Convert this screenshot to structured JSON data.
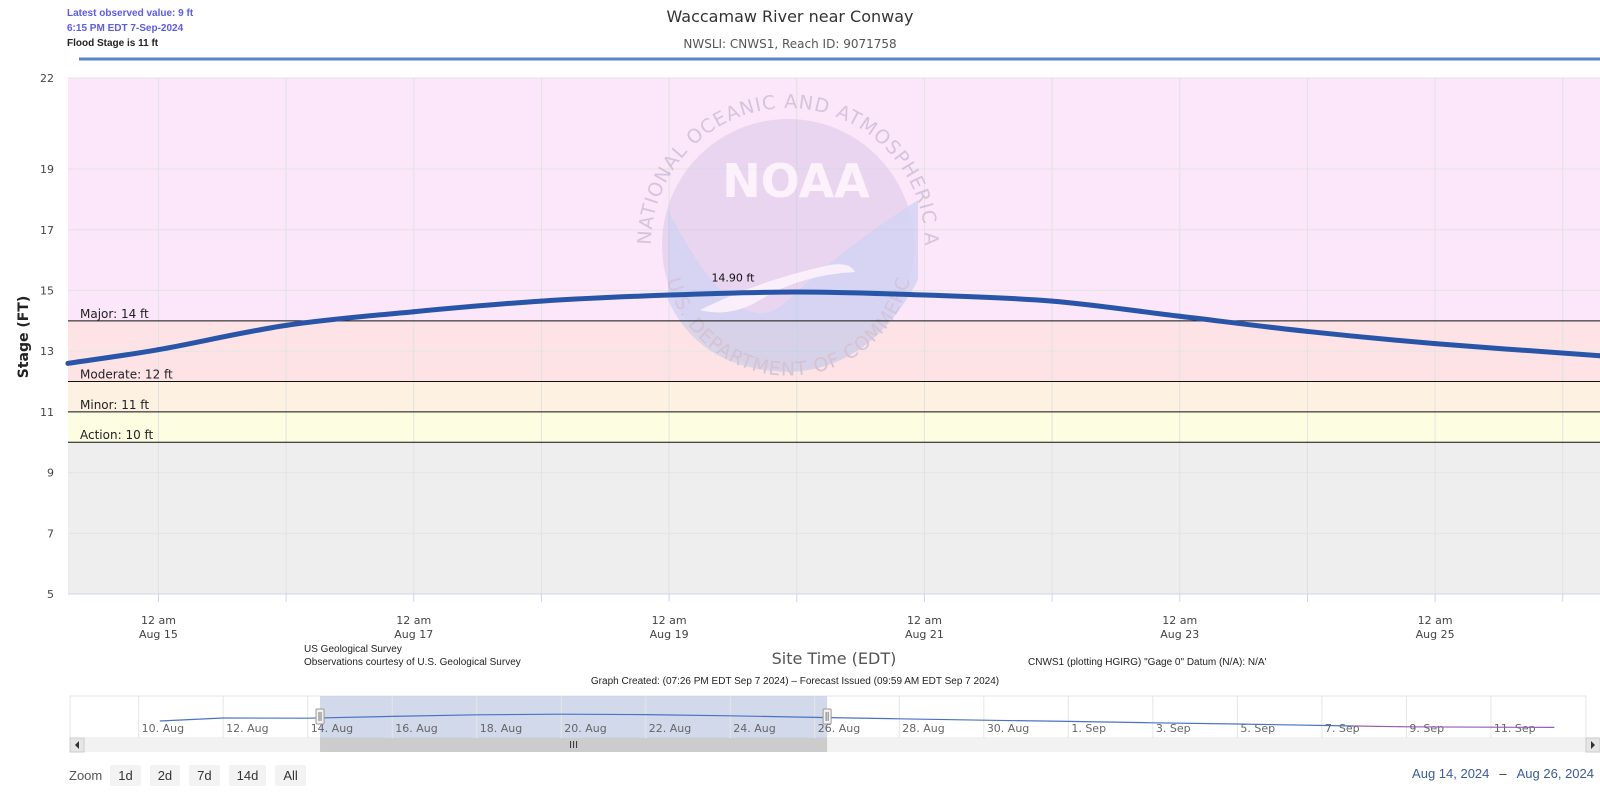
{
  "info": {
    "latest_value": "Latest observed value: 9 ft",
    "latest_time": "6:15 PM EDT 7-Sep-2024",
    "flood_stage": "Flood Stage is 11 ft"
  },
  "credits": {
    "left_line1": "US Geological Survey",
    "left_line2": "Observations courtesy of U.S. Geological Survey",
    "right": "CNWS1 (plotting HGIRG) \"Gage 0\" Datum (N/A): N/A'",
    "graph_created": "Graph Created: (07:26 PM EDT Sep 7 2024) – Forecast Issued (09:59 AM EDT Sep 7 2024)"
  },
  "watermark": {
    "logo_text": "NOAA",
    "ring_text": "NATIONAL OCEANIC AND ATMOSPHERIC ADMINISTRATION",
    "ring_text_bottom": "U.S. DEPARTMENT OF COMMERCE"
  },
  "colors": {
    "series": "#2855a8",
    "major_band": "#fbe6fa",
    "moderate_band": "#fde3e6",
    "minor_band": "#fdf1e2",
    "action_band": "#fdfde2",
    "normal_band": "#eeeeee",
    "navigator_fill": "#c6d0e6"
  },
  "chart_data": {
    "type": "line",
    "title": "Waccamaw River near Conway",
    "subtitle": "NWSLI: CNWS1, Reach ID: 9071758",
    "xlabel": "Site Time (EDT)",
    "ylabel": "Stage (FT)",
    "xlim": [
      "2024-08-14 07:00",
      "2024-08-26 07:00"
    ],
    "ylim": [
      5,
      22
    ],
    "y_ticks": [
      5,
      7,
      9,
      11,
      13,
      15,
      17,
      19,
      22
    ],
    "x_ticks": [
      {
        "t": "2024-08-15 00:00",
        "line1": "12 am",
        "line2": "Aug 15"
      },
      {
        "t": "2024-08-17 00:00",
        "line1": "12 am",
        "line2": "Aug 17"
      },
      {
        "t": "2024-08-19 00:00",
        "line1": "12 am",
        "line2": "Aug 19"
      },
      {
        "t": "2024-08-21 00:00",
        "line1": "12 am",
        "line2": "Aug 21"
      },
      {
        "t": "2024-08-23 00:00",
        "line1": "12 am",
        "line2": "Aug 23"
      },
      {
        "t": "2024-08-25 00:00",
        "line1": "12 am",
        "line2": "Aug 25"
      }
    ],
    "thresholds": [
      {
        "label": "Major: 14 ft",
        "value": 14
      },
      {
        "label": "Moderate: 12 ft",
        "value": 12
      },
      {
        "label": "Minor: 11 ft",
        "value": 11
      },
      {
        "label": "Action: 10 ft",
        "value": 10
      }
    ],
    "bands": [
      {
        "name": "major",
        "from": 14,
        "to": 22
      },
      {
        "name": "moderate",
        "from": 12,
        "to": 14
      },
      {
        "name": "minor",
        "from": 11,
        "to": 12
      },
      {
        "name": "action",
        "from": 10,
        "to": 11
      },
      {
        "name": "normal",
        "from": 5,
        "to": 10
      }
    ],
    "series": [
      {
        "x": [
          "2024-08-14 07:00",
          "2024-08-15 00:00",
          "2024-08-16 00:00",
          "2024-08-17 00:00",
          "2024-08-18 00:00",
          "2024-08-19 00:00",
          "2024-08-20 00:00",
          "2024-08-21 00:00",
          "2024-08-22 00:00",
          "2024-08-23 00:00",
          "2024-08-24 00:00",
          "2024-08-25 00:00",
          "2024-08-26 07:00"
        ],
        "y": [
          12.6,
          13.05,
          13.85,
          14.3,
          14.65,
          14.85,
          14.95,
          14.85,
          14.65,
          14.15,
          13.65,
          13.25,
          12.85
        ]
      }
    ],
    "annotations": [
      {
        "x": "2024-08-19 12:00",
        "y": 14.9,
        "text": "14.90 ft"
      }
    ],
    "navigator": {
      "x_ticks": [
        "10. Aug",
        "12. Aug",
        "14. Aug",
        "16. Aug",
        "18. Aug",
        "20. Aug",
        "22. Aug",
        "24. Aug",
        "26. Aug",
        "28. Aug",
        "30. Aug",
        "1. Sep",
        "3. Sep",
        "5. Sep",
        "7. Sep",
        "9. Sep",
        "11. Sep"
      ],
      "observed": {
        "x": [
          "2024-08-10 12:00",
          "2024-08-12 00:00",
          "2024-08-14 00:00",
          "2024-08-16 00:00",
          "2024-08-18 00:00",
          "2024-08-20 00:00",
          "2024-08-22 00:00",
          "2024-08-24 00:00",
          "2024-08-26 00:00",
          "2024-08-28 00:00",
          "2024-08-30 00:00",
          "2024-09-01 00:00",
          "2024-09-03 00:00",
          "2024-09-05 00:00",
          "2024-09-07 18:00"
        ],
        "y": [
          11.5,
          13.0,
          12.9,
          13.8,
          14.6,
          14.9,
          14.7,
          14.1,
          13.3,
          12.6,
          11.9,
          11.3,
          10.6,
          10.0,
          9.0
        ]
      },
      "forecast": {
        "x": [
          "2024-09-07 18:00",
          "2024-09-09 00:00",
          "2024-09-11 00:00",
          "2024-09-12 12:00"
        ],
        "y": [
          9.0,
          8.6,
          8.4,
          8.3
        ]
      },
      "ylim": [
        5,
        22
      ]
    }
  },
  "zoom": {
    "label": "Zoom",
    "buttons": [
      "1d",
      "2d",
      "7d",
      "14d",
      "All"
    ]
  },
  "range": {
    "from": "Aug 14, 2024",
    "to": "Aug 26, 2024"
  }
}
